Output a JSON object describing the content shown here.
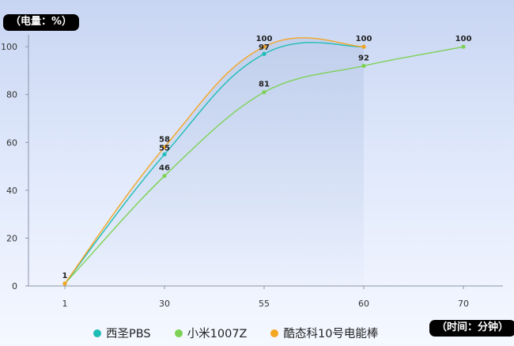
{
  "y_unit": "（电量：%）",
  "x_unit": "（时间：分钟）",
  "chart_data": {
    "type": "line",
    "categories": [
      "1",
      "30",
      "55",
      "60",
      "70"
    ],
    "ylim": [
      0,
      105
    ],
    "yticks": [
      0,
      20,
      40,
      60,
      80,
      100
    ],
    "grid": false,
    "smooth": true,
    "legend_position": "bottom",
    "series": [
      {
        "name": "西圣PBS",
        "color": "#1ebcb5",
        "values": [
          1,
          55,
          97,
          100,
          null
        ]
      },
      {
        "name": "小米1007Z",
        "color": "#7dd155",
        "values": [
          1,
          46,
          81,
          92,
          100
        ]
      },
      {
        "name": "酷态科10号电能棒",
        "color": "#f5a623",
        "values": [
          1,
          58,
          100,
          100,
          null
        ]
      }
    ],
    "data_labels": [
      {
        "x": "1",
        "text": "1"
      },
      {
        "x": "30",
        "text": "58"
      },
      {
        "x": "30",
        "text": "55"
      },
      {
        "x": "30",
        "text": "46"
      },
      {
        "x": "55",
        "text": "100"
      },
      {
        "x": "55",
        "text": "97"
      },
      {
        "x": "55",
        "text": "81"
      },
      {
        "x": "60",
        "text": "100"
      },
      {
        "x": "60",
        "text": "92"
      },
      {
        "x": "70",
        "text": "100"
      }
    ]
  }
}
